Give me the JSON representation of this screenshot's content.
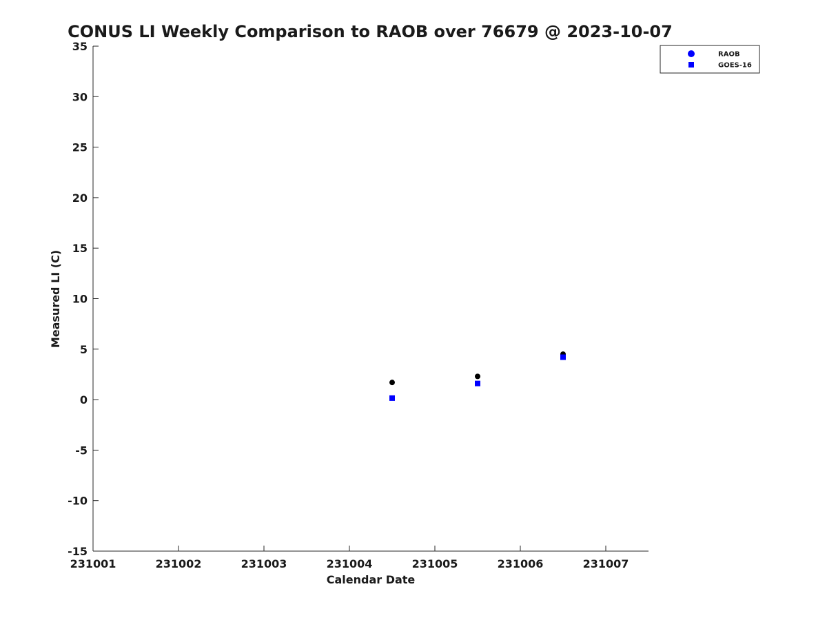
{
  "chart_data": {
    "type": "scatter",
    "title": "CONUS LI Weekly Comparison to RAOB over 76679 @ 2023-10-07",
    "xlabel": "Calendar Date",
    "ylabel": "Measured LI (C)",
    "x_tick_labels": [
      "231001",
      "231002",
      "231003",
      "231004",
      "231005",
      "231006",
      "231007"
    ],
    "x_tick_values": [
      0,
      1,
      2,
      3,
      4,
      5,
      6
    ],
    "xlim": [
      0,
      6.5
    ],
    "ylim": [
      -15,
      35
    ],
    "y_ticks": [
      -15,
      -10,
      -5,
      0,
      5,
      10,
      15,
      20,
      25,
      30,
      35
    ],
    "legend_position": "top-right",
    "series": [
      {
        "name": "RAOB",
        "marker": "circle",
        "color": "#000000",
        "legend_color": "#0000ff",
        "points": [
          {
            "x": 3.5,
            "y": 1.7
          },
          {
            "x": 4.5,
            "y": 2.3
          },
          {
            "x": 5.5,
            "y": 4.5
          }
        ]
      },
      {
        "name": "GOES-16",
        "marker": "square",
        "color": "#0000ff",
        "legend_color": "#0000ff",
        "points": [
          {
            "x": 3.5,
            "y": 0.15
          },
          {
            "x": 4.5,
            "y": 1.6
          },
          {
            "x": 5.5,
            "y": 4.2
          }
        ]
      }
    ]
  }
}
